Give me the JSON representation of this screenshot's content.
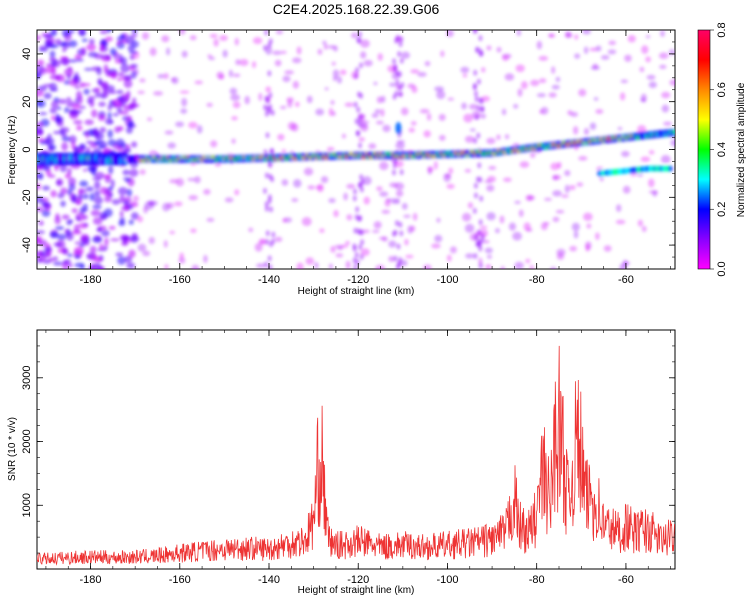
{
  "title": "C2E4.2025.168.22.39.G06",
  "chart_data": [
    {
      "type": "heatmap",
      "xlabel": "Height of straight line (km)",
      "ylabel": "Frequency (Hz)",
      "xlim": [
        -192,
        -49
      ],
      "ylim": [
        -50,
        50
      ],
      "x_ticks": [
        -180,
        -160,
        -140,
        -120,
        -100,
        -80,
        -60
      ],
      "y_ticks": [
        -40,
        -20,
        0,
        20,
        40
      ],
      "colorbar": {
        "label": "Normalized spectral amplitude",
        "range": [
          0,
          0.8
        ],
        "ticks": [
          "0.0",
          "0.2",
          "0.4",
          "0.6",
          "0.8"
        ],
        "colors": [
          "#ff00ff",
          "#8800ff",
          "#0000ff",
          "#00ffff",
          "#00ff00",
          "#ffff00",
          "#ff8800",
          "#ff0000",
          "#ff0066"
        ]
      },
      "ridge": {
        "x": [
          -192,
          -172,
          -168,
          -160,
          -150,
          -140,
          -130,
          -120,
          -110,
          -100,
          -90,
          -80,
          -70,
          -60,
          -50
        ],
        "frequency": [
          -4,
          -4,
          -4,
          -4,
          -4,
          -3.5,
          -3,
          -2.5,
          -2.5,
          -2,
          -1.5,
          1,
          3,
          5,
          7
        ]
      },
      "secondary_ridge": {
        "x": [
          -66,
          -60,
          -55,
          -50
        ],
        "frequency": [
          -10,
          -9,
          -8,
          -8
        ]
      }
    },
    {
      "type": "line",
      "xlabel": "Height of straight line (km)",
      "ylabel": "SNR (10 * v/v)",
      "xlim": [
        -192,
        -49
      ],
      "ylim": [
        0,
        3750
      ],
      "x_ticks": [
        -180,
        -160,
        -140,
        -120,
        -100,
        -80,
        -60
      ],
      "y_ticks": [
        1000,
        2000,
        3000
      ],
      "series": [
        {
          "color": "#ee3333",
          "x": [
            -192,
            -185,
            -180,
            -175,
            -170,
            -165,
            -160,
            -155,
            -150,
            -145,
            -140,
            -135,
            -132,
            -130,
            -129,
            -128,
            -127,
            -126,
            -125,
            -123,
            -120,
            -118,
            -115,
            -110,
            -105,
            -100,
            -95,
            -92,
            -90,
            -87,
            -86,
            -85,
            -84,
            -83,
            -82,
            -80,
            -79,
            -78,
            -77,
            -76,
            -75,
            -74,
            -73,
            -72,
            -71,
            -70,
            -69,
            -68,
            -67,
            -66,
            -65,
            -63,
            -61,
            -60,
            -58,
            -56,
            -54,
            -52,
            -50
          ],
          "values": [
            250,
            280,
            300,
            290,
            300,
            330,
            400,
            450,
            500,
            520,
            500,
            650,
            700,
            1200,
            2500,
            2600,
            900,
            650,
            600,
            600,
            700,
            650,
            550,
            600,
            550,
            600,
            650,
            700,
            750,
            900,
            1300,
            1800,
            1100,
            1000,
            900,
            1300,
            2200,
            2300,
            1500,
            3200,
            3600,
            2800,
            1700,
            2300,
            3300,
            2800,
            1700,
            1900,
            1600,
            1500,
            1100,
            1000,
            900,
            1100,
            900,
            1000,
            900,
            700,
            800
          ]
        }
      ]
    }
  ]
}
